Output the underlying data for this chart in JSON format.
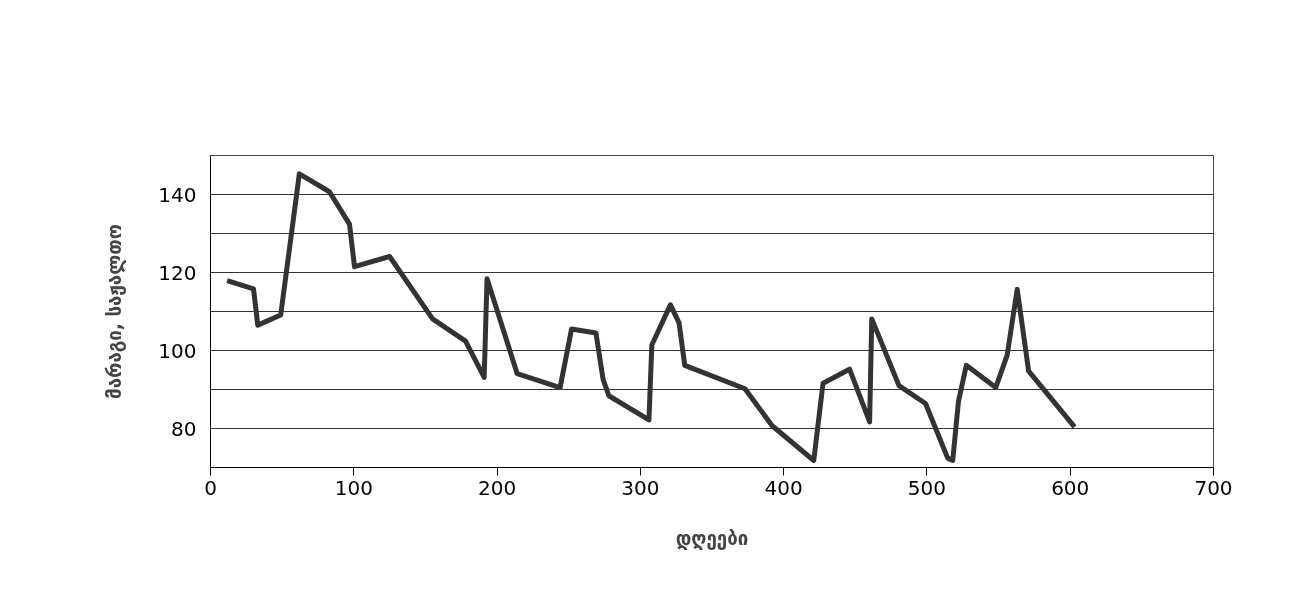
{
  "chart_data": {
    "type": "line",
    "xlabel": "დღეები",
    "ylabel": "მარაგი, საჟალთო",
    "x": [
      11.6,
      30,
      33,
      49,
      62,
      83,
      97,
      100.5,
      125,
      155,
      178,
      191,
      193,
      214,
      244,
      252,
      269,
      274,
      278,
      306,
      308,
      321,
      327,
      331,
      373,
      392,
      421,
      427.5,
      446,
      460,
      461.5,
      480.5,
      499,
      514.5,
      518,
      522,
      527.5,
      548,
      556,
      563,
      571,
      603
    ],
    "series": [
      {
        "color": "#333333",
        "values": [
          117.9,
          115.8,
          106.5,
          109.1,
          145.3,
          140.7,
          132.4,
          121.5,
          124.1,
          108.1,
          102.4,
          93.1,
          118.4,
          94.1,
          90.5,
          105.5,
          104.5,
          92.6,
          88.4,
          82.2,
          101.4,
          111.7,
          107.1,
          96.2,
          90.2,
          80.7,
          71.8,
          91.6,
          95.2,
          81.7,
          108.1,
          91.0,
          86.4,
          72.4,
          71.8,
          86.9,
          96.2,
          90.5,
          98.8,
          115.7,
          94.7,
          80.4
        ]
      }
    ],
    "xlim": [
      0,
      700
    ],
    "xticks": [
      0,
      100,
      200,
      300,
      400,
      500,
      600,
      700
    ],
    "ylim": [
      70,
      150
    ],
    "yticks": [
      {
        "value": 70,
        "label": null
      },
      80,
      {
        "value": 90,
        "label": null
      },
      100,
      {
        "value": 110,
        "label": null
      },
      120,
      {
        "value": 130,
        "label": null
      },
      140,
      {
        "value": 150,
        "label": null
      }
    ],
    "grid": "y",
    "line_style": "solid"
  }
}
